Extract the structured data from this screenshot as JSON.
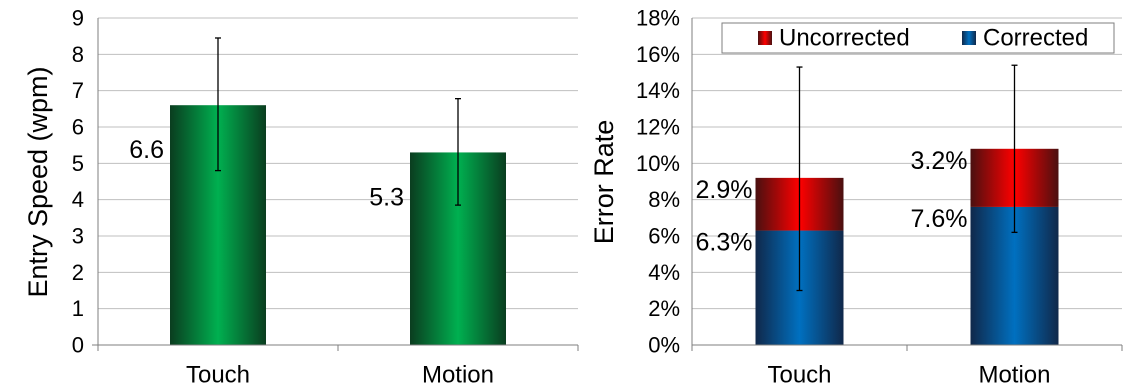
{
  "chart_data": [
    {
      "type": "bar",
      "title": "",
      "ylabel": "Entry Speed (wpm)",
      "xlabel": "",
      "ylim": [
        0,
        9
      ],
      "yticks": [
        0,
        1,
        2,
        3,
        4,
        5,
        6,
        7,
        8,
        9
      ],
      "grid": true,
      "categories": [
        "Touch",
        "Motion"
      ],
      "values": [
        6.6,
        5.3
      ],
      "data_labels": [
        "6.6",
        "5.3"
      ],
      "error_bars": [
        {
          "low": 4.8,
          "high": 8.45
        },
        {
          "low": 3.85,
          "high": 6.78
        }
      ],
      "colors": {
        "bar_center": "#00b050",
        "bar_edge": "#0a3d1f"
      }
    },
    {
      "type": "bar",
      "stacked": true,
      "title": "",
      "ylabel": "Error Rate",
      "xlabel": "",
      "ylim": [
        0,
        18
      ],
      "yticks": [
        "0%",
        "2%",
        "4%",
        "6%",
        "8%",
        "10%",
        "12%",
        "14%",
        "16%",
        "18%"
      ],
      "ytick_values": [
        0,
        2,
        4,
        6,
        8,
        10,
        12,
        14,
        16,
        18
      ],
      "grid": true,
      "categories": [
        "Touch",
        "Motion"
      ],
      "legend_position": "top",
      "series": [
        {
          "name": "Corrected",
          "values": [
            6.3,
            7.6
          ],
          "labels": [
            "6.3%",
            "7.6%"
          ],
          "color_center": "#0070c0",
          "color_edge": "#10284a"
        },
        {
          "name": "Uncorrected",
          "values": [
            2.9,
            3.2
          ],
          "labels": [
            "2.9%",
            "3.2%"
          ],
          "color_center": "#ff0000",
          "color_edge": "#4a1010"
        }
      ],
      "legend_order": [
        "Uncorrected",
        "Corrected"
      ],
      "error_bars": [
        {
          "low": 3.0,
          "high": 15.3
        },
        {
          "low": 6.2,
          "high": 15.4
        }
      ]
    }
  ]
}
